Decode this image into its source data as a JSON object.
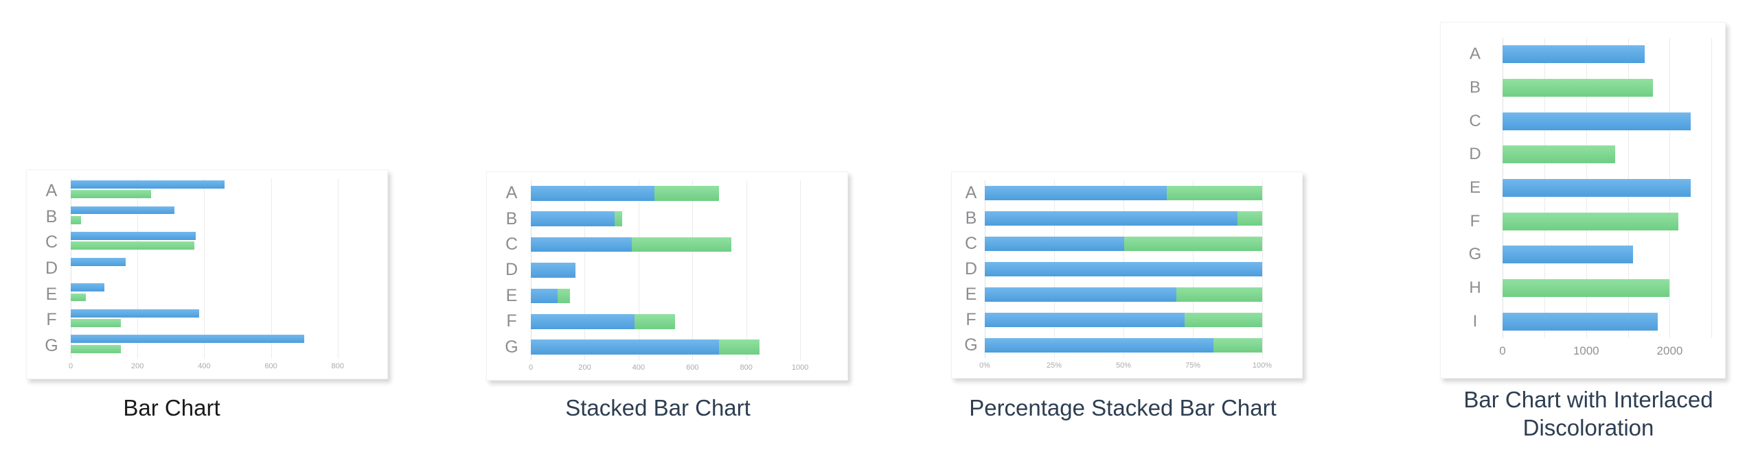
{
  "colors": {
    "blue": "#50a6e8",
    "green": "#76d98a",
    "grid": "#ebebeb",
    "zero_line": "#e0e0e0",
    "label": "#8b8d90",
    "tick": "#a8aaac",
    "tick_large": "#929292",
    "panel_border": "#f1f1f1",
    "title_dark": "#1b1b1b",
    "title_navy": "#2e3e52"
  },
  "chart_data": [
    {
      "type": "bar",
      "title": "Bar Chart",
      "orientation": "horizontal",
      "grid": true,
      "legend": "none",
      "stacked": false,
      "categories": [
        "A",
        "B",
        "C",
        "D",
        "E",
        "F",
        "G"
      ],
      "series": [
        {
          "name": "blue-series",
          "color": "blue",
          "values": [
            460,
            310,
            375,
            165,
            100,
            385,
            700
          ]
        },
        {
          "name": "green-series",
          "color": "green",
          "values": [
            240,
            30,
            370,
            0,
            45,
            150,
            150
          ]
        }
      ],
      "xlim": [
        0,
        920
      ],
      "xticks": [
        0,
        200,
        400,
        600,
        800
      ],
      "tick_suffix": ""
    },
    {
      "type": "bar",
      "title": "Stacked Bar Chart",
      "orientation": "horizontal",
      "grid": true,
      "legend": "none",
      "stacked": true,
      "categories": [
        "A",
        "B",
        "C",
        "D",
        "E",
        "F",
        "G"
      ],
      "series": [
        {
          "name": "blue-series",
          "color": "blue",
          "values": [
            460,
            310,
            375,
            165,
            100,
            385,
            700
          ]
        },
        {
          "name": "green-series",
          "color": "green",
          "values": [
            240,
            30,
            370,
            0,
            45,
            150,
            150
          ]
        }
      ],
      "xlim": [
        0,
        1140
      ],
      "xticks": [
        0,
        200,
        400,
        600,
        800,
        1000
      ],
      "tick_suffix": ""
    },
    {
      "type": "bar",
      "title": "Percentage Stacked Bar Chart",
      "orientation": "horizontal",
      "grid": true,
      "legend": "none",
      "stacked": true,
      "percentage": true,
      "categories": [
        "A",
        "B",
        "C",
        "D",
        "E",
        "F",
        "G"
      ],
      "series": [
        {
          "name": "blue-series",
          "color": "blue",
          "values": [
            460,
            310,
            375,
            165,
            100,
            385,
            700
          ]
        },
        {
          "name": "green-series",
          "color": "green",
          "values": [
            240,
            30,
            370,
            0,
            45,
            150,
            150
          ]
        }
      ],
      "xlim": [
        0,
        100
      ],
      "xticks": [
        0,
        25,
        50,
        75,
        100
      ],
      "tick_suffix": "%"
    },
    {
      "type": "bar",
      "title": "Bar Chart with Interlaced Discoloration",
      "orientation": "horizontal",
      "grid": true,
      "legend": "none",
      "stacked": false,
      "categories": [
        "A",
        "B",
        "C",
        "D",
        "E",
        "F",
        "G",
        "H",
        "I"
      ],
      "values": [
        1700,
        1800,
        2250,
        1350,
        2250,
        2100,
        1560,
        2000,
        1860
      ],
      "bar_colors": [
        "blue",
        "green",
        "blue",
        "green",
        "blue",
        "green",
        "blue",
        "green",
        "blue"
      ],
      "xlim": [
        0,
        2530
      ],
      "xticks": [
        0,
        1000,
        2000
      ],
      "minor_grid_step": 500,
      "tick_suffix": ""
    }
  ]
}
